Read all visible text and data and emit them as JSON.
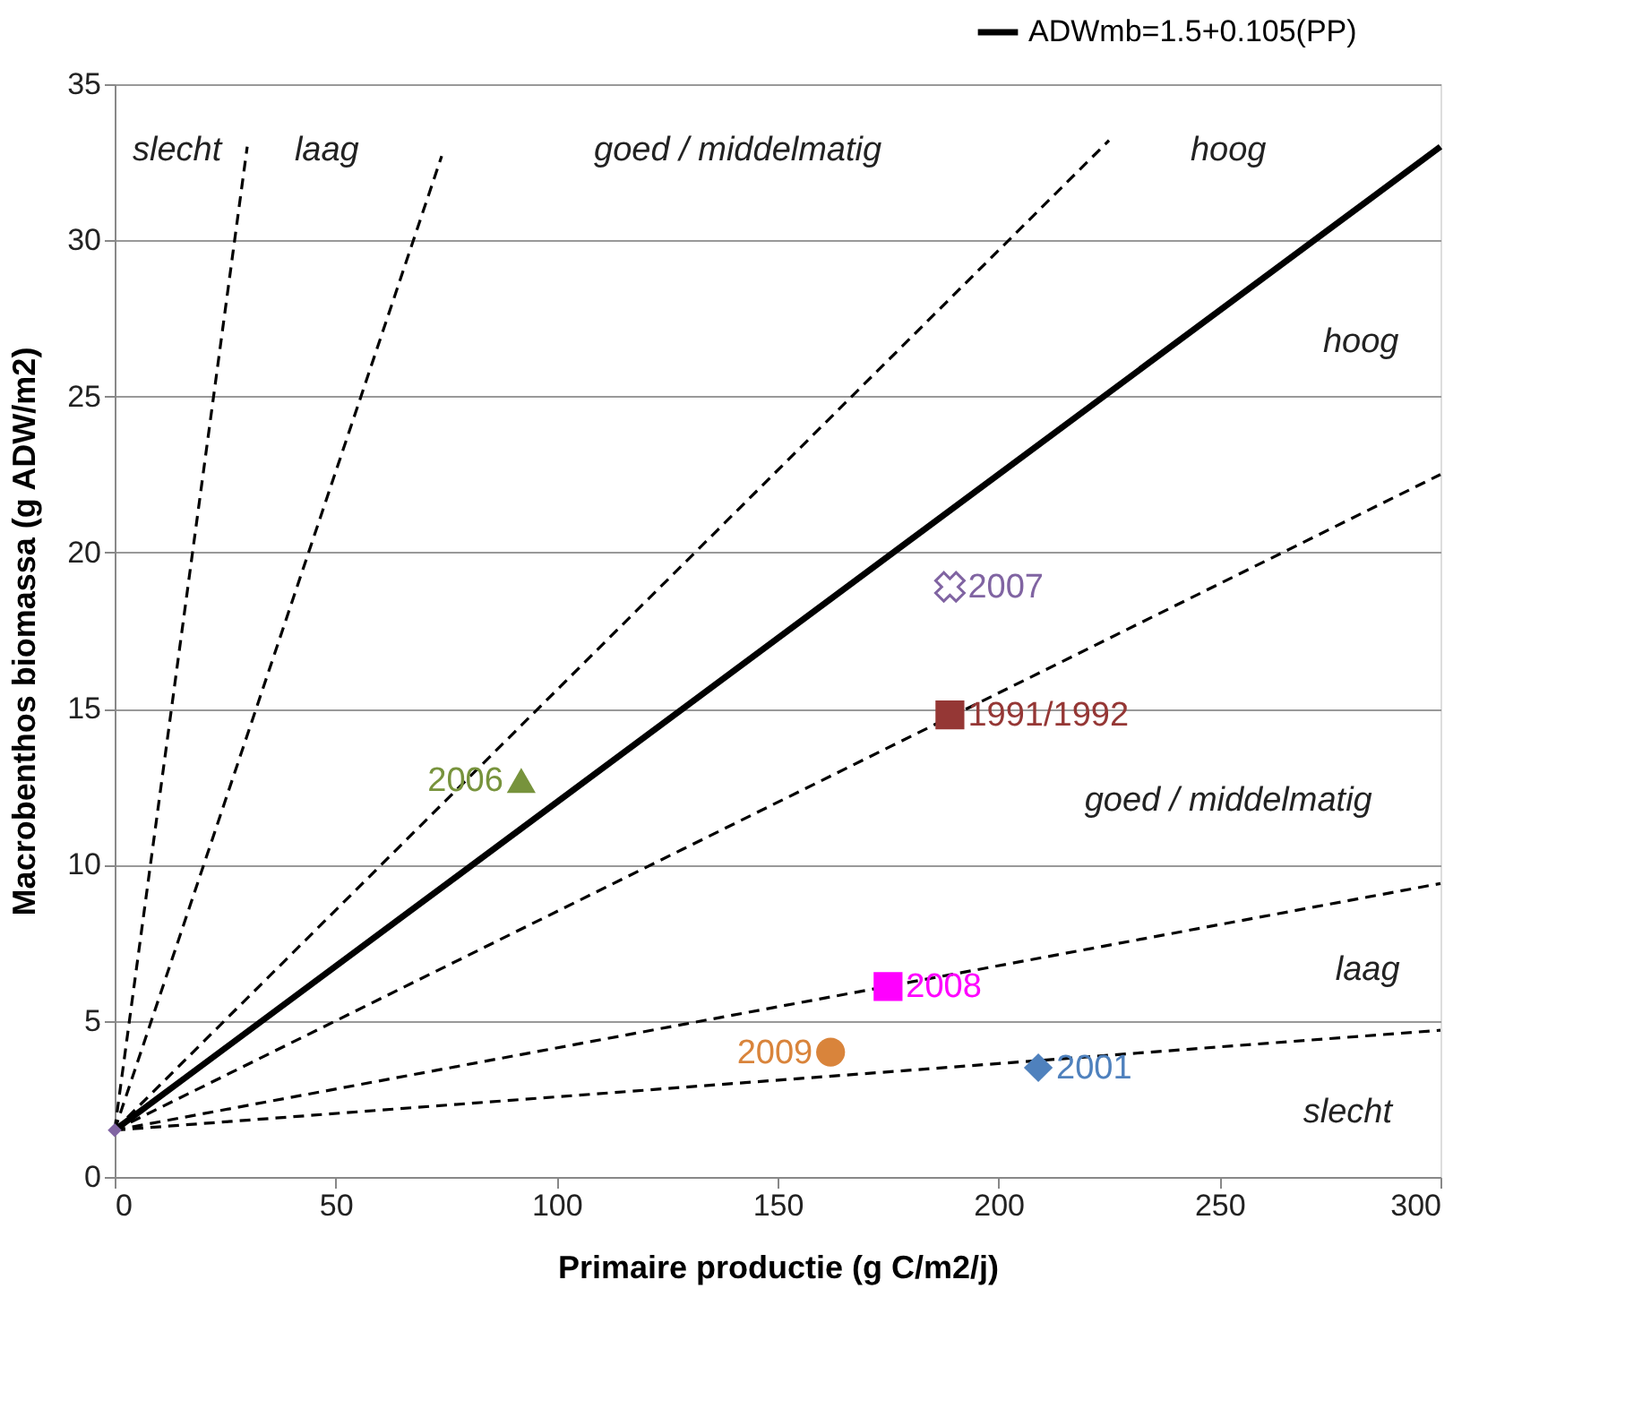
{
  "chart_data": {
    "type": "scatter",
    "xlabel": "Primaire productie (g C/m2/j)",
    "ylabel": "Macrobenthos biomassa (g ADW/m2)",
    "xlim": [
      0,
      300
    ],
    "xticks": [
      0,
      50,
      100,
      150,
      200,
      250,
      300
    ],
    "ylim": [
      0,
      35
    ],
    "yticks": [
      0,
      5,
      10,
      15,
      20,
      25,
      30,
      35
    ],
    "grid": "y",
    "legend": "top right",
    "series": [
      {
        "name": "ADWmb=1.5+0.105(PP)",
        "type": "line",
        "color": "#000000",
        "line_style": "solid",
        "x": [
          0,
          300
        ],
        "values": [
          1.5,
          33
        ]
      },
      {
        "type": "line",
        "color": "#000000",
        "line_style": "dashed",
        "x": [
          0,
          30
        ],
        "values": [
          1.5,
          33
        ]
      },
      {
        "type": "line",
        "color": "#000000",
        "line_style": "dashed",
        "x": [
          0,
          74
        ],
        "values": [
          1.5,
          32.7
        ]
      },
      {
        "type": "line",
        "color": "#000000",
        "line_style": "dashed",
        "x": [
          0,
          225
        ],
        "values": [
          1.5,
          33.2
        ]
      },
      {
        "type": "line",
        "color": "#000000",
        "line_style": "dashed",
        "x": [
          0,
          300
        ],
        "values": [
          1.5,
          22.5
        ]
      },
      {
        "type": "line",
        "color": "#000000",
        "line_style": "dashed",
        "x": [
          0,
          300
        ],
        "values": [
          1.5,
          9.4
        ]
      },
      {
        "type": "line",
        "color": "#000000",
        "line_style": "dashed",
        "x": [
          0,
          300
        ],
        "values": [
          1.5,
          4.7
        ]
      },
      {
        "color": "#8064a2",
        "marker": "diamond",
        "x": [
          0
        ],
        "values": [
          1.5
        ]
      },
      {
        "name": "2006",
        "color": "#77933c",
        "marker": "triangle",
        "x": [
          92
        ],
        "values": [
          12.7
        ]
      },
      {
        "name": "2007",
        "color": "#8064a2",
        "marker": "cross",
        "x": [
          189
        ],
        "values": [
          18.9
        ]
      },
      {
        "name": "1991/1992",
        "color": "#953735",
        "marker": "square",
        "x": [
          189
        ],
        "values": [
          14.8
        ]
      },
      {
        "name": "2008",
        "color": "#ff00ff",
        "marker": "square",
        "x": [
          175
        ],
        "values": [
          6.1
        ]
      },
      {
        "name": "2009",
        "color": "#d9843b",
        "marker": "circle",
        "x": [
          162
        ],
        "values": [
          4.0
        ]
      },
      {
        "name": "2001",
        "color": "#4f81bd",
        "marker": "diamond",
        "x": [
          209
        ],
        "values": [
          3.5
        ]
      }
    ],
    "annotations": [
      "slecht",
      "laag",
      "goed / middelmatig",
      "hoog",
      "hoog",
      "goed / middelmatig",
      "laag",
      "slecht"
    ]
  }
}
